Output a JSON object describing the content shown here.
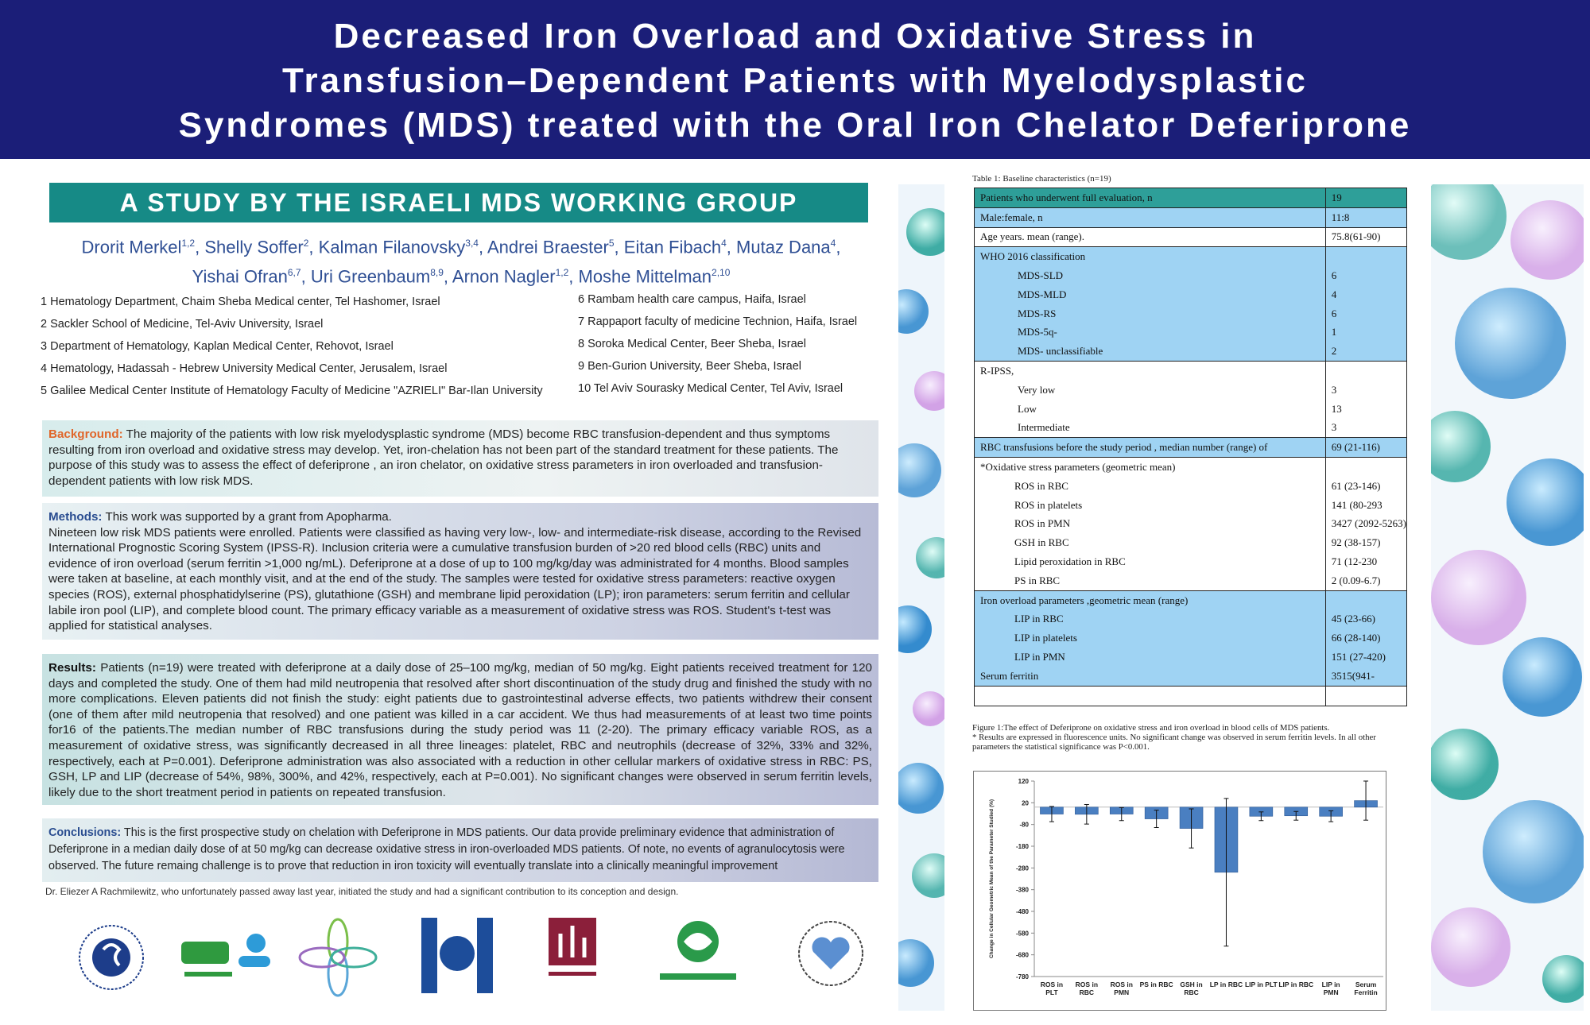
{
  "title": [
    "Decreased Iron Overload and Oxidative Stress in",
    "Transfusion–Dependent Patients with Myelodysplastic",
    "Syndromes (MDS) treated with the Oral Iron Chelator Deferiprone"
  ],
  "subtitle": "A STUDY BY THE ISRAELI MDS WORKING GROUP",
  "authors": [
    [
      {
        "name": "Drorit Merkel",
        "sup": "1,2",
        "sep": ","
      },
      {
        "name": "Shelly Soffer",
        "sup": "2",
        "sep": ","
      },
      {
        "name": "Kalman Filanovsky",
        "sup": "3,4",
        "sep": ","
      },
      {
        "name": "Andrei Braester",
        "sup": "5",
        "sep": ","
      },
      {
        "name": "Eitan Fibach",
        "sup": "4",
        "sep": ","
      },
      {
        "name": "Mutaz Dana",
        "sup": "4",
        "sep": ","
      }
    ],
    [
      {
        "name": "Yishai Ofran",
        "sup": "6,7",
        "sep": ","
      },
      {
        "name": "Uri Greenbaum",
        "sup": "8,9",
        "sep": ","
      },
      {
        "name": "Arnon Nagler",
        "sup": "1,2",
        "sep": ","
      },
      {
        "name": "Moshe Mittelman",
        "sup": "2,10"
      }
    ]
  ],
  "affiliations": {
    "left": [
      "1 Hematology Department, Chaim Sheba Medical center, Tel Hashomer, Israel",
      "2 Sackler School of Medicine, Tel-Aviv University, Israel",
      "3 Department of Hematology, Kaplan Medical Center, Rehovot, Israel",
      "4 Hematology, Hadassah - Hebrew University Medical Center, Jerusalem, Israel",
      "5 Galilee Medical Center Institute of Hematology Faculty of Medicine \"AZRIELI\" Bar-Ilan University"
    ],
    "right": [
      "6 Rambam health care campus, Haifa, Israel",
      "7 Rappaport faculty of medicine Technion, Haifa, Israel",
      "8 Soroka Medical Center, Beer Sheba, Israel",
      "9 Ben-Gurion University, Beer Sheba, Israel",
      "10 Tel Aviv Sourasky Medical Center, Tel Aviv, Israel"
    ]
  },
  "sections": {
    "background": {
      "label": "Background:",
      "paragraphs": [
        "The majority of the patients with low risk myelodysplastic syndrome (MDS) become RBC transfusion-dependent and thus symptoms resulting from iron overload and oxidative stress may develop. Yet, iron-chelation has not been part of the standard treatment for these patients. The purpose of this study was to assess the effect of deferiprone , an iron chelator, on oxidative stress parameters in iron overloaded and transfusion-dependent patients with low risk MDS."
      ]
    },
    "methods": {
      "label": "Methods:",
      "paragraphs": [
        "This work was supported by a grant from Apopharma.",
        "Nineteen low risk MDS patients were enrolled. Patients were classified as having very low-, low- and intermediate-risk disease, according to the Revised International Prognostic Scoring System (IPSS-R). Inclusion criteria were a cumulative transfusion burden of >20 red blood cells (RBC) units and evidence of iron overload (serum ferritin >1,000 ng/mL). Deferiprone at a dose of up to 100 mg/kg/day was administrated for 4 months. Blood samples were taken at baseline, at each monthly visit, and at the end of the study. The samples were tested for oxidative stress parameters: reactive oxygen species (ROS), external phosphatidylserine (PS), glutathione (GSH) and membrane lipid peroxidation (LP); iron parameters: serum ferritin and cellular labile iron pool (LIP), and complete blood count. The primary efficacy variable as a measurement of oxidative stress was ROS. Student's t-test was applied for statistical analyses."
      ]
    },
    "results": {
      "label": "Results:",
      "paragraphs": [
        "Patients (n=19) were treated with deferiprone at a daily dose of 25–100 mg/kg, median of 50 mg/kg. Eight patients received treatment for 120 days and completed the study. One of them had mild neutropenia that resolved after short discontinuation of the study drug and finished the study with no more complications. Eleven patients did not finish the study: eight patients due to gastrointestinal adverse effects, two patients withdrew their consent (one of them after mild neutropenia that resolved) and one patient was killed in a car accident. We thus had measurements of at least two time points for16 of the patients.The median number of RBC transfusions during the study period was 11 (2-20). The primary efficacy variable ROS, as a measurement of oxidative stress, was significantly decreased in all three lineages: platelet, RBC and neutrophils (decrease of 32%, 33% and 32%, respectively, each at P=0.001). Deferiprone administration was also associated with a reduction in other cellular markers of oxidative stress in RBC: PS, GSH, LP and LIP (decrease of 54%, 98%, 300%, and 42%, respectively, each at P=0.001). No significant changes were observed in serum ferritin levels, likely due to the short treatment period in patients on repeated transfusion."
      ]
    },
    "conclusions": {
      "label": "Conclusions:",
      "paragraphs": [
        "This is the first prospective study on chelation with Deferiprone in MDS patients. Our data provide preliminary evidence that administration of Deferiprone in a median daily dose of at 50 mg/kg can decrease oxidative stress in iron-overloaded MDS patients. Of note, no events of agranulocytosis were observed. The future remaing challenge is to prove that reduction in iron toxicity will eventually translate into a clinically meaningful improvement"
      ]
    }
  },
  "acknowledgment": "Dr. Eliezer A Rachmilewitz, who unfortunately passed away last year, initiated the study and  had a significant contribution to its conception and design.",
  "table": {
    "caption": "Table 1: Baseline characteristics (n=19)",
    "rows": [
      [
        "Patients who underwent full evaluation, n",
        "19"
      ],
      [
        "Male:female, n",
        "11:8"
      ],
      [
        "Age years. mean (range).",
        "75.8(61-90)"
      ],
      [
        "WHO 2016 classification"
      ],
      [
        "MDS-SLD",
        "6"
      ],
      [
        "MDS-MLD",
        "4"
      ],
      [
        "MDS-RS",
        "6"
      ],
      [
        "MDS-5q-",
        "1"
      ],
      [
        "MDS- unclassifiable",
        "2"
      ],
      [
        "R-IPSS,"
      ],
      [
        "Very low",
        "3"
      ],
      [
        "Low",
        "13"
      ],
      [
        "Intermediate",
        "3"
      ],
      [
        "RBC transfusions before the study period  , median number (range) of",
        "69 (21-116)"
      ],
      [
        "*Oxidative stress parameters (geometric mean)"
      ],
      [
        "ROS in RBC",
        "61 (23-146)"
      ],
      [
        "ROS in platelets",
        "141 (80-293"
      ],
      [
        "ROS in PMN",
        "3427 (2092-5263)"
      ],
      [
        "GSH in RBC",
        "92 (38-157)"
      ],
      [
        "Lipid peroxidation in RBC",
        "71 (12-230"
      ],
      [
        "PS in RBC",
        "2 (0.09-6.7)"
      ],
      [
        "Iron overload parameters ,geometric mean (range)"
      ],
      [
        "LIP in RBC",
        "45 (23-66)"
      ],
      [
        "LIP in platelets",
        "66 (28-140)"
      ],
      [
        "LIP in PMN",
        "151 (27-420)"
      ],
      [
        "Serum ferritin",
        "3515(941-"
      ]
    ]
  },
  "figure_caption": [
    "Figure 1:The effect of Deferiprone on oxidative stress and iron overload in blood cells of MDS patients.",
    "* Results are expressed in fluorescence units. No significant change was observed in serum ferritin levels. In all other parameters the statistical significance was P<0.001."
  ],
  "chart_data": {
    "type": "bar",
    "y_label": "Change in Cellular Geometric Mean of the Parameter Studied (%)",
    "categories": [
      "ROS in PLT",
      "ROS in RBC",
      "ROS in PMN",
      "PS in RBC",
      "GSH in RBC",
      "LP in RBC",
      "LIP in PLT",
      "LIP in RBC",
      "LIP in PMN",
      "Serum Ferritin"
    ],
    "values": [
      -32,
      -33,
      -32,
      -54,
      -98,
      -300,
      -42,
      -40,
      -42,
      30
    ],
    "errors": [
      35,
      45,
      30,
      40,
      90,
      340,
      20,
      20,
      25,
      90
    ],
    "color": "#4a7fc1",
    "ylim": [
      -780,
      120
    ],
    "yticks": [
      120,
      20,
      -80,
      -180,
      -280,
      -380,
      -480,
      -580,
      -680,
      -780
    ]
  }
}
